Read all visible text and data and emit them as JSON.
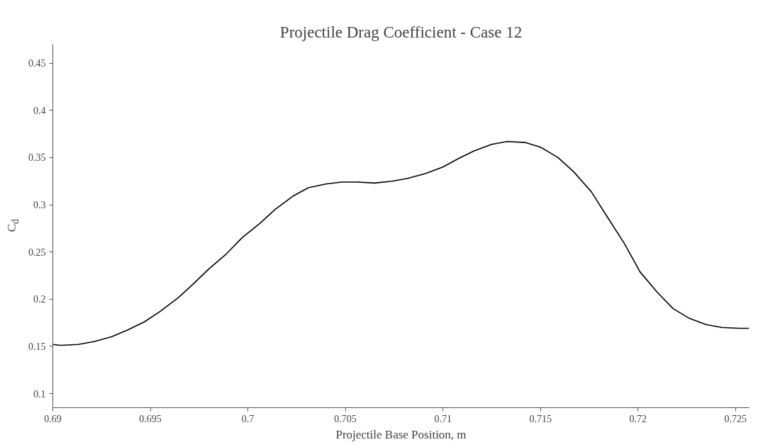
{
  "chart_data": {
    "type": "line",
    "title": "Projectile Drag Coefficient - Case 12",
    "xlabel": "Projectile Base Position, m",
    "ylabel": "C$_{d}$",
    "x": [
      0.69,
      0.6904,
      0.6913,
      0.6921,
      0.693,
      0.6938,
      0.6947,
      0.6955,
      0.6964,
      0.6972,
      0.698,
      0.6989,
      0.6997,
      0.7006,
      0.7014,
      0.7023,
      0.7031,
      0.704,
      0.7048,
      0.7056,
      0.7065,
      0.7074,
      0.7082,
      0.7091,
      0.71,
      0.7108,
      0.7116,
      0.7125,
      0.7133,
      0.7142,
      0.715,
      0.7159,
      0.7167,
      0.7176,
      0.7184,
      0.7193,
      0.7201,
      0.721,
      0.7218,
      0.7226,
      0.7235,
      0.7243,
      0.7252,
      0.7257
    ],
    "series": [
      {
        "color": "#000000",
        "values": [
          0.152,
          0.151,
          0.152,
          0.155,
          0.16,
          0.167,
          0.176,
          0.187,
          0.201,
          0.216,
          0.232,
          0.248,
          0.265,
          0.28,
          0.295,
          0.309,
          0.318,
          0.322,
          0.324,
          0.324,
          0.323,
          0.325,
          0.328,
          0.333,
          0.34,
          0.349,
          0.357,
          0.364,
          0.367,
          0.366,
          0.361,
          0.35,
          0.335,
          0.314,
          0.288,
          0.259,
          0.229,
          0.207,
          0.19,
          0.18,
          0.173,
          0.17,
          0.169,
          0.169
        ]
      }
    ],
    "xlim": [
      0.69,
      0.7257
    ],
    "ylim": [
      0.085,
      0.47
    ],
    "xticks": [
      0.69,
      0.695,
      0.7,
      0.705,
      0.71,
      0.715,
      0.72,
      0.725
    ],
    "yticks": [
      0.1,
      0.15,
      0.2,
      0.25,
      0.3,
      0.35,
      0.4,
      0.45
    ],
    "grid": false,
    "line_style": "solid",
    "marker": "none"
  }
}
